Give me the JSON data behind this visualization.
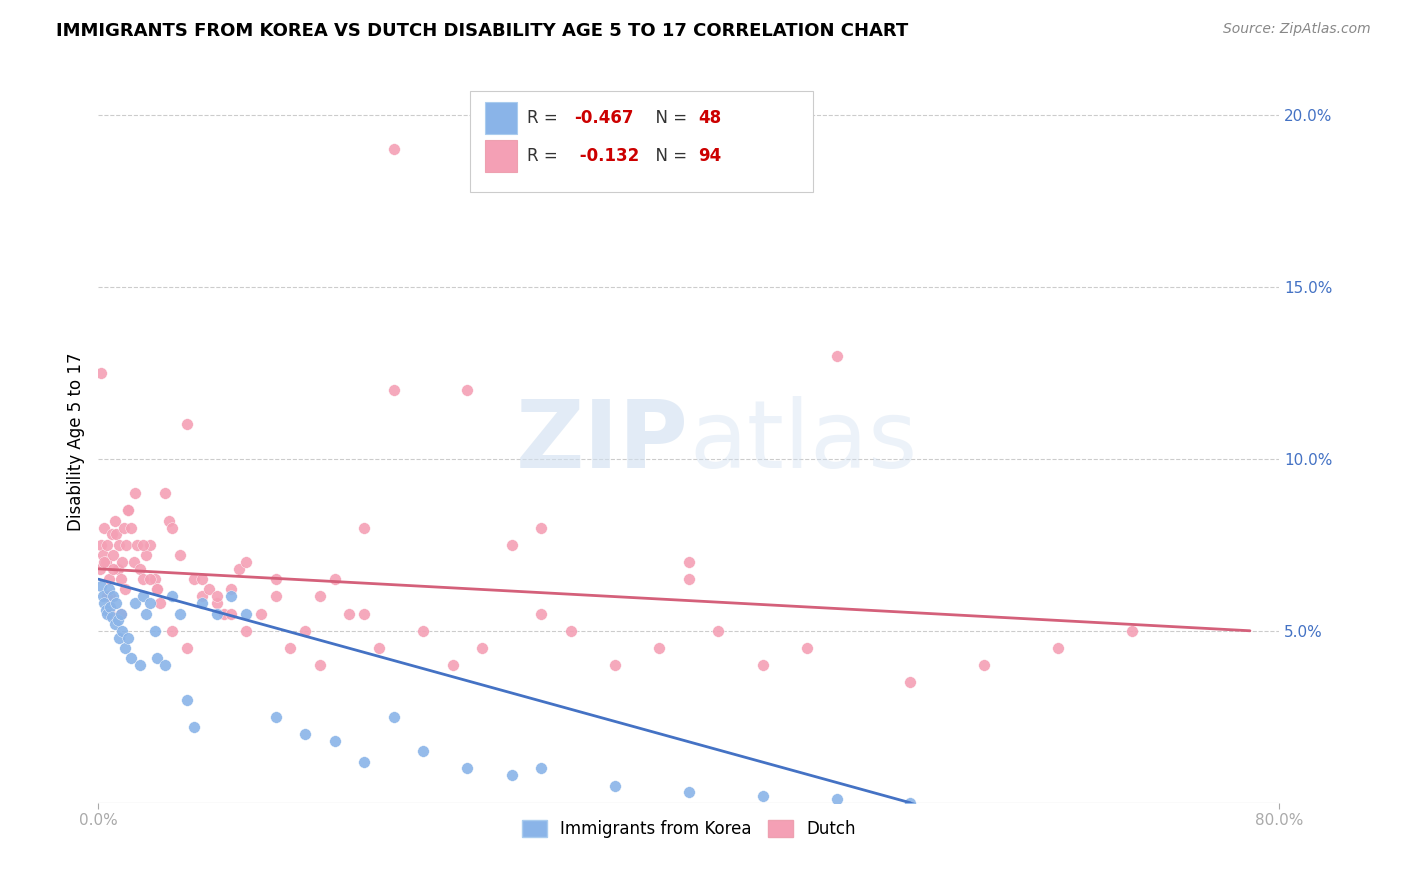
{
  "title": "IMMIGRANTS FROM KOREA VS DUTCH DISABILITY AGE 5 TO 17 CORRELATION CHART",
  "source": "Source: ZipAtlas.com",
  "ylabel": "Disability Age 5 to 17",
  "xlim": [
    0.0,
    0.8
  ],
  "ylim": [
    0.0,
    0.21
  ],
  "yticks": [
    0.05,
    0.1,
    0.15,
    0.2
  ],
  "ytick_labels": [
    "5.0%",
    "10.0%",
    "15.0%",
    "20.0%"
  ],
  "xtick_labels": [
    "0.0%",
    "80.0%"
  ],
  "xtick_positions": [
    0.0,
    0.8
  ],
  "korea_R": -0.467,
  "korea_N": 48,
  "dutch_R": -0.132,
  "dutch_N": 94,
  "korea_color": "#8ab4e8",
  "dutch_color": "#f4a0b5",
  "korea_line_color": "#4472c4",
  "dutch_line_color": "#d4607a",
  "background_color": "#ffffff",
  "watermark": "ZIPatlas",
  "korea_scatter_x": [
    0.002,
    0.003,
    0.004,
    0.005,
    0.006,
    0.007,
    0.008,
    0.009,
    0.01,
    0.011,
    0.012,
    0.013,
    0.014,
    0.015,
    0.016,
    0.018,
    0.02,
    0.022,
    0.025,
    0.028,
    0.03,
    0.032,
    0.035,
    0.038,
    0.04,
    0.045,
    0.05,
    0.055,
    0.06,
    0.065,
    0.07,
    0.08,
    0.09,
    0.1,
    0.12,
    0.14,
    0.16,
    0.18,
    0.2,
    0.22,
    0.25,
    0.28,
    0.3,
    0.35,
    0.4,
    0.45,
    0.5,
    0.55
  ],
  "korea_scatter_y": [
    0.063,
    0.06,
    0.058,
    0.056,
    0.055,
    0.062,
    0.057,
    0.054,
    0.06,
    0.052,
    0.058,
    0.053,
    0.048,
    0.055,
    0.05,
    0.045,
    0.048,
    0.042,
    0.058,
    0.04,
    0.06,
    0.055,
    0.058,
    0.05,
    0.042,
    0.04,
    0.06,
    0.055,
    0.03,
    0.022,
    0.058,
    0.055,
    0.06,
    0.055,
    0.025,
    0.02,
    0.018,
    0.012,
    0.025,
    0.015,
    0.01,
    0.008,
    0.01,
    0.005,
    0.003,
    0.002,
    0.001,
    0.0
  ],
  "dutch_scatter_x": [
    0.001,
    0.002,
    0.003,
    0.004,
    0.005,
    0.006,
    0.007,
    0.008,
    0.009,
    0.01,
    0.011,
    0.012,
    0.013,
    0.014,
    0.015,
    0.016,
    0.017,
    0.018,
    0.019,
    0.02,
    0.022,
    0.024,
    0.026,
    0.028,
    0.03,
    0.032,
    0.035,
    0.038,
    0.04,
    0.042,
    0.045,
    0.048,
    0.05,
    0.055,
    0.06,
    0.065,
    0.07,
    0.075,
    0.08,
    0.085,
    0.09,
    0.095,
    0.1,
    0.11,
    0.12,
    0.13,
    0.14,
    0.15,
    0.16,
    0.17,
    0.18,
    0.19,
    0.2,
    0.22,
    0.24,
    0.26,
    0.28,
    0.3,
    0.32,
    0.35,
    0.38,
    0.4,
    0.42,
    0.45,
    0.48,
    0.5,
    0.55,
    0.6,
    0.65,
    0.7,
    0.002,
    0.004,
    0.006,
    0.008,
    0.01,
    0.015,
    0.02,
    0.025,
    0.03,
    0.035,
    0.04,
    0.05,
    0.06,
    0.07,
    0.08,
    0.09,
    0.1,
    0.12,
    0.15,
    0.18,
    0.2,
    0.25,
    0.3,
    0.4
  ],
  "dutch_scatter_y": [
    0.068,
    0.075,
    0.072,
    0.08,
    0.07,
    0.075,
    0.065,
    0.06,
    0.078,
    0.072,
    0.082,
    0.078,
    0.068,
    0.075,
    0.065,
    0.07,
    0.08,
    0.062,
    0.075,
    0.085,
    0.08,
    0.07,
    0.075,
    0.068,
    0.065,
    0.072,
    0.075,
    0.065,
    0.062,
    0.058,
    0.09,
    0.082,
    0.08,
    0.072,
    0.11,
    0.065,
    0.06,
    0.062,
    0.058,
    0.055,
    0.062,
    0.068,
    0.05,
    0.055,
    0.06,
    0.045,
    0.05,
    0.04,
    0.065,
    0.055,
    0.08,
    0.045,
    0.12,
    0.05,
    0.04,
    0.045,
    0.075,
    0.055,
    0.05,
    0.04,
    0.045,
    0.065,
    0.05,
    0.04,
    0.045,
    0.13,
    0.035,
    0.04,
    0.045,
    0.05,
    0.125,
    0.07,
    0.06,
    0.055,
    0.068,
    0.055,
    0.085,
    0.09,
    0.075,
    0.065,
    0.062,
    0.05,
    0.045,
    0.065,
    0.06,
    0.055,
    0.07,
    0.065,
    0.06,
    0.055,
    0.19,
    0.12,
    0.08,
    0.07
  ],
  "korea_line_x0": 0.0,
  "korea_line_y0": 0.065,
  "korea_line_x1": 0.55,
  "korea_line_y1": 0.0,
  "dutch_line_x0": 0.0,
  "dutch_line_y0": 0.068,
  "dutch_line_x1": 0.78,
  "dutch_line_y1": 0.05
}
